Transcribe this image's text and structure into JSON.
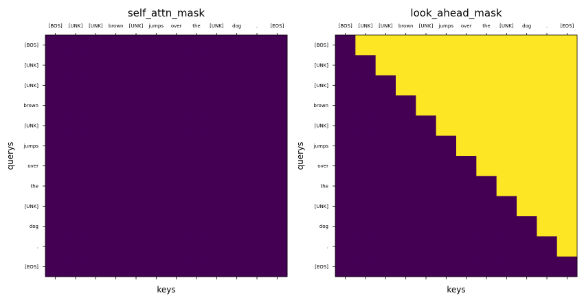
{
  "chart_data": [
    {
      "type": "heatmap",
      "title": "self_attn_mask",
      "xlabel": "keys",
      "ylabel": "querys",
      "x_tick_labels": [
        "[BOS]",
        "[UNK]",
        "[UNK]",
        "brown",
        "[UNK]",
        "jumps",
        "over",
        "the",
        "[UNK]",
        "dog",
        ".",
        "[EOS]"
      ],
      "y_tick_labels": [
        "[BOS]",
        "[UNK]",
        "[UNK]",
        "brown",
        "[UNK]",
        "jumps",
        "over",
        "the",
        "[UNK]",
        "dog",
        ".",
        "[EOS]"
      ],
      "colormap": "viridis",
      "value_range": [
        0,
        1
      ],
      "matrix": [
        [
          0,
          0,
          0,
          0,
          0,
          0,
          0,
          0,
          0,
          0,
          0,
          0
        ],
        [
          0,
          0,
          0,
          0,
          0,
          0,
          0,
          0,
          0,
          0,
          0,
          0
        ],
        [
          0,
          0,
          0,
          0,
          0,
          0,
          0,
          0,
          0,
          0,
          0,
          0
        ],
        [
          0,
          0,
          0,
          0,
          0,
          0,
          0,
          0,
          0,
          0,
          0,
          0
        ],
        [
          0,
          0,
          0,
          0,
          0,
          0,
          0,
          0,
          0,
          0,
          0,
          0
        ],
        [
          0,
          0,
          0,
          0,
          0,
          0,
          0,
          0,
          0,
          0,
          0,
          0
        ],
        [
          0,
          0,
          0,
          0,
          0,
          0,
          0,
          0,
          0,
          0,
          0,
          0
        ],
        [
          0,
          0,
          0,
          0,
          0,
          0,
          0,
          0,
          0,
          0,
          0,
          0
        ],
        [
          0,
          0,
          0,
          0,
          0,
          0,
          0,
          0,
          0,
          0,
          0,
          0
        ],
        [
          0,
          0,
          0,
          0,
          0,
          0,
          0,
          0,
          0,
          0,
          0,
          0
        ],
        [
          0,
          0,
          0,
          0,
          0,
          0,
          0,
          0,
          0,
          0,
          0,
          0
        ],
        [
          0,
          0,
          0,
          0,
          0,
          0,
          0,
          0,
          0,
          0,
          0,
          0
        ]
      ]
    },
    {
      "type": "heatmap",
      "title": "look_ahead_mask",
      "xlabel": "keys",
      "ylabel": "querys",
      "x_tick_labels": [
        "[BOS]",
        "[UNK]",
        "[UNK]",
        "brown",
        "[UNK]",
        "jumps",
        "over",
        "the",
        "[UNK]",
        "dog",
        ".",
        "[EOS]"
      ],
      "y_tick_labels": [
        "[BOS]",
        "[UNK]",
        "[UNK]",
        "brown",
        "[UNK]",
        "jumps",
        "over",
        "the",
        "[UNK]",
        "dog",
        ".",
        "[EOS]"
      ],
      "colormap": "viridis",
      "value_range": [
        0,
        1
      ],
      "matrix": [
        [
          0,
          1,
          1,
          1,
          1,
          1,
          1,
          1,
          1,
          1,
          1,
          1
        ],
        [
          0,
          0,
          1,
          1,
          1,
          1,
          1,
          1,
          1,
          1,
          1,
          1
        ],
        [
          0,
          0,
          0,
          1,
          1,
          1,
          1,
          1,
          1,
          1,
          1,
          1
        ],
        [
          0,
          0,
          0,
          0,
          1,
          1,
          1,
          1,
          1,
          1,
          1,
          1
        ],
        [
          0,
          0,
          0,
          0,
          0,
          1,
          1,
          1,
          1,
          1,
          1,
          1
        ],
        [
          0,
          0,
          0,
          0,
          0,
          0,
          1,
          1,
          1,
          1,
          1,
          1
        ],
        [
          0,
          0,
          0,
          0,
          0,
          0,
          0,
          1,
          1,
          1,
          1,
          1
        ],
        [
          0,
          0,
          0,
          0,
          0,
          0,
          0,
          0,
          1,
          1,
          1,
          1
        ],
        [
          0,
          0,
          0,
          0,
          0,
          0,
          0,
          0,
          0,
          1,
          1,
          1
        ],
        [
          0,
          0,
          0,
          0,
          0,
          0,
          0,
          0,
          0,
          0,
          1,
          1
        ],
        [
          0,
          0,
          0,
          0,
          0,
          0,
          0,
          0,
          0,
          0,
          0,
          1
        ],
        [
          0,
          0,
          0,
          0,
          0,
          0,
          0,
          0,
          0,
          0,
          0,
          0
        ]
      ]
    }
  ],
  "colors": {
    "low": "#440154",
    "high": "#fde725"
  }
}
